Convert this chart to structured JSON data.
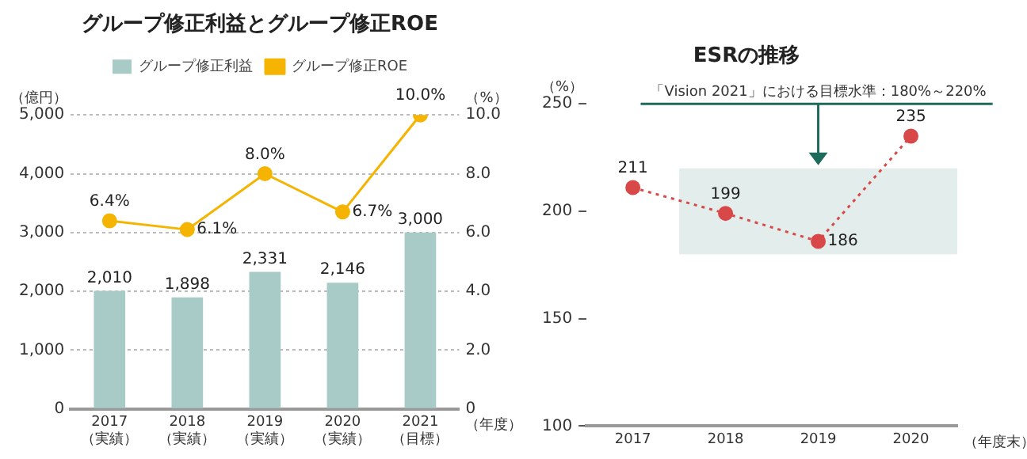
{
  "chart_data": [
    {
      "type": "bar",
      "title": "グループ修正利益とグループ修正ROE",
      "categories": [
        "2017\n（実績）",
        "2018\n（実績）",
        "2019\n（実績）",
        "2020\n（実績）",
        "2021\n（目標）"
      ],
      "xlabel": "（年度）",
      "ylabel": "（億円）",
      "y2label": "（%）",
      "series": [
        {
          "name": "グループ修正利益",
          "color": "#a9cbc8",
          "values": [
            2010,
            1898,
            2331,
            2146,
            3000
          ],
          "value_labels": [
            "2,010",
            "1,898",
            "2,331",
            "2,146",
            "3,000"
          ]
        },
        {
          "name": "グループ修正ROE",
          "type": "line",
          "axis": "y2",
          "color": "#f5b400",
          "values": [
            6.4,
            6.1,
            8.0,
            6.7,
            10.0
          ],
          "value_labels": [
            "6.4%",
            "6.1%",
            "8.0%",
            "6.7%",
            "10.0%"
          ]
        }
      ],
      "ylim": [
        0,
        5000
      ],
      "yticks": [
        0,
        {
          "value": 1000,
          "label": "1,000"
        },
        {
          "value": 2000,
          "label": "2,000"
        },
        {
          "value": 3000,
          "label": "3,000"
        },
        {
          "value": 4000,
          "label": "4,000"
        },
        {
          "value": 5000,
          "label": "5,000"
        }
      ],
      "y2lim": [
        0,
        10
      ],
      "y2ticks": [
        0,
        {
          "value": 2,
          "label": "2.0"
        },
        {
          "value": 4,
          "label": "4.0"
        },
        {
          "value": 6,
          "label": "6.0"
        },
        {
          "value": 8,
          "label": "8.0"
        },
        {
          "value": 10,
          "label": "10.0"
        }
      ],
      "grid": "y",
      "legend": "top",
      "marker": "circle"
    },
    {
      "type": "line",
      "title": "ESRの推移",
      "categories": [
        "2017",
        "2018",
        "2019",
        "2020"
      ],
      "xlabel": "（年度末）",
      "ylabel": "（%）",
      "series": [
        {
          "color": "#d94848",
          "values": [
            211,
            199,
            186,
            235
          ]
        }
      ],
      "data_labels": true,
      "ylim": [
        100,
        250
      ],
      "yticks": [
        100,
        150,
        200,
        250
      ],
      "grid": false,
      "marker": "circle",
      "line_style": "dotted",
      "bands": [
        {
          "axis": "y",
          "from": 180,
          "to": 220,
          "label": "「Vision 2021」における目標水準：180%～220%",
          "color": "#e3edeb"
        }
      ]
    }
  ]
}
